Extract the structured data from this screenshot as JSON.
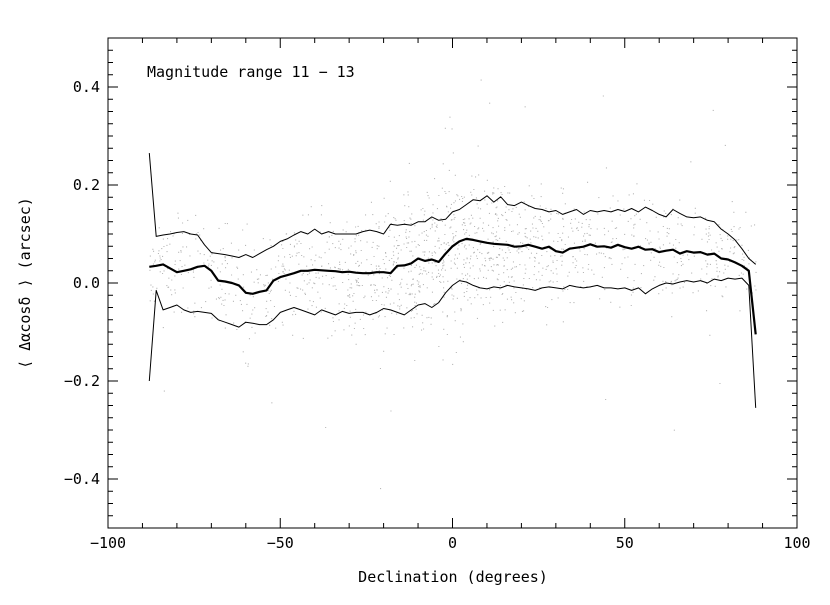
{
  "chart_data": {
    "type": "scatter",
    "title": "",
    "annotation": "Magnitude range 11 − 13",
    "xlabel": "Declination (degrees)",
    "ylabel": "⟨ Δαcosδ ⟩ (arcsec)",
    "xlim": [
      -100,
      100
    ],
    "ylim": [
      -0.5,
      0.5
    ],
    "x_ticks": [
      -100,
      -50,
      0,
      50,
      100
    ],
    "x_tick_labels": [
      "−100",
      "−50",
      "0",
      "50",
      "100"
    ],
    "y_ticks": [
      -0.4,
      -0.2,
      0.0,
      0.2,
      0.4
    ],
    "y_tick_labels": [
      "−0.4",
      "−0.2",
      "0.0",
      "0.2",
      "0.4"
    ],
    "grid": false,
    "point_color": "#b8b8b8",
    "line_color": "#000000",
    "scatter_envelope": {
      "declination": [
        -88,
        -85,
        -80,
        -75,
        -70,
        -65,
        -60,
        -55,
        -50,
        -45,
        -40,
        -35,
        -30,
        -25,
        -20,
        -15,
        -10,
        -5,
        0,
        5,
        10,
        15,
        20,
        25,
        30,
        35,
        40,
        45,
        50,
        55,
        60,
        65,
        70,
        75,
        80,
        85,
        88
      ],
      "center": [
        0.03,
        0.035,
        0.025,
        0.03,
        0.005,
        -0.005,
        -0.02,
        -0.01,
        0.01,
        0.02,
        0.025,
        0.025,
        0.022,
        0.02,
        0.03,
        0.04,
        0.045,
        0.05,
        0.07,
        0.085,
        0.08,
        0.075,
        0.07,
        0.075,
        0.065,
        0.07,
        0.075,
        0.07,
        0.075,
        0.068,
        0.065,
        0.06,
        0.062,
        0.06,
        0.055,
        0.045,
        0.02
      ],
      "spread": [
        0.09,
        0.1,
        0.11,
        0.11,
        0.12,
        0.12,
        0.12,
        0.12,
        0.12,
        0.12,
        0.11,
        0.11,
        0.11,
        0.11,
        0.12,
        0.12,
        0.13,
        0.14,
        0.15,
        0.13,
        0.12,
        0.12,
        0.12,
        0.11,
        0.11,
        0.11,
        0.11,
        0.11,
        0.11,
        0.11,
        0.1,
        0.1,
        0.1,
        0.09,
        0.08,
        0.07,
        0.06
      ]
    },
    "series": [
      {
        "name": "",
        "style": "thick",
        "x": [
          -88,
          -86,
          -84,
          -82,
          -80,
          -78,
          -76,
          -74,
          -72,
          -70,
          -68,
          -66,
          -64,
          -62,
          -60,
          -58,
          -56,
          -54,
          -52,
          -50,
          -48,
          -46,
          -44,
          -42,
          -40,
          -38,
          -36,
          -34,
          -32,
          -30,
          -28,
          -26,
          -24,
          -22,
          -20,
          -18,
          -16,
          -14,
          -12,
          -10,
          -8,
          -6,
          -4,
          -2,
          0,
          2,
          4,
          6,
          8,
          10,
          12,
          14,
          16,
          18,
          20,
          22,
          24,
          26,
          28,
          30,
          32,
          34,
          36,
          38,
          40,
          42,
          44,
          46,
          48,
          50,
          52,
          54,
          56,
          58,
          60,
          62,
          64,
          66,
          68,
          70,
          72,
          74,
          76,
          78,
          80,
          82,
          84,
          86,
          88
        ],
        "y": [
          0.033,
          0.035,
          0.038,
          0.03,
          0.022,
          0.025,
          0.028,
          0.033,
          0.035,
          0.025,
          0.005,
          0.003,
          0.0,
          -0.005,
          -0.02,
          -0.022,
          -0.018,
          -0.015,
          0.005,
          0.012,
          0.016,
          0.02,
          0.025,
          0.025,
          0.027,
          0.026,
          0.025,
          0.024,
          0.022,
          0.023,
          0.021,
          0.02,
          0.02,
          0.022,
          0.022,
          0.02,
          0.035,
          0.036,
          0.04,
          0.05,
          0.045,
          0.048,
          0.043,
          0.06,
          0.075,
          0.085,
          0.09,
          0.088,
          0.085,
          0.082,
          0.08,
          0.079,
          0.078,
          0.074,
          0.075,
          0.078,
          0.074,
          0.07,
          0.074,
          0.065,
          0.062,
          0.07,
          0.072,
          0.074,
          0.079,
          0.074,
          0.075,
          0.072,
          0.078,
          0.073,
          0.07,
          0.074,
          0.068,
          0.069,
          0.063,
          0.066,
          0.068,
          0.06,
          0.065,
          0.062,
          0.063,
          0.058,
          0.06,
          0.05,
          0.048,
          0.042,
          0.035,
          0.025,
          -0.105
        ]
      },
      {
        "name": "",
        "style": "thin-upper",
        "x": [
          -88,
          -86,
          -84,
          -82,
          -80,
          -78,
          -76,
          -74,
          -72,
          -70,
          -68,
          -66,
          -64,
          -62,
          -60,
          -58,
          -56,
          -54,
          -52,
          -50,
          -48,
          -46,
          -44,
          -42,
          -40,
          -38,
          -36,
          -34,
          -32,
          -30,
          -28,
          -26,
          -24,
          -22,
          -20,
          -18,
          -16,
          -14,
          -12,
          -10,
          -8,
          -6,
          -4,
          -2,
          0,
          2,
          4,
          6,
          8,
          10,
          12,
          14,
          16,
          18,
          20,
          22,
          24,
          26,
          28,
          30,
          32,
          34,
          36,
          38,
          40,
          42,
          44,
          46,
          48,
          50,
          52,
          54,
          56,
          58,
          60,
          62,
          64,
          66,
          68,
          70,
          72,
          74,
          76,
          78,
          80,
          82,
          84,
          86,
          88
        ],
        "y": [
          0.265,
          0.095,
          0.098,
          0.1,
          0.103,
          0.105,
          0.1,
          0.098,
          0.078,
          0.062,
          0.06,
          0.058,
          0.055,
          0.052,
          0.058,
          0.052,
          0.06,
          0.068,
          0.075,
          0.085,
          0.09,
          0.098,
          0.105,
          0.1,
          0.11,
          0.1,
          0.105,
          0.1,
          0.1,
          0.1,
          0.1,
          0.105,
          0.108,
          0.105,
          0.1,
          0.12,
          0.118,
          0.12,
          0.118,
          0.125,
          0.125,
          0.135,
          0.128,
          0.13,
          0.145,
          0.15,
          0.16,
          0.17,
          0.168,
          0.178,
          0.165,
          0.176,
          0.16,
          0.158,
          0.165,
          0.158,
          0.152,
          0.15,
          0.145,
          0.148,
          0.14,
          0.145,
          0.15,
          0.14,
          0.148,
          0.145,
          0.148,
          0.145,
          0.15,
          0.146,
          0.152,
          0.145,
          0.155,
          0.148,
          0.14,
          0.135,
          0.15,
          0.142,
          0.135,
          0.133,
          0.135,
          0.128,
          0.125,
          0.11,
          0.1,
          0.088,
          0.07,
          0.05,
          0.038
        ]
      },
      {
        "name": "",
        "style": "thin-lower",
        "x": [
          -88,
          -86,
          -84,
          -82,
          -80,
          -78,
          -76,
          -74,
          -72,
          -70,
          -68,
          -66,
          -64,
          -62,
          -60,
          -58,
          -56,
          -54,
          -52,
          -50,
          -48,
          -46,
          -44,
          -42,
          -40,
          -38,
          -36,
          -34,
          -32,
          -30,
          -28,
          -26,
          -24,
          -22,
          -20,
          -18,
          -16,
          -14,
          -12,
          -10,
          -8,
          -6,
          -4,
          -2,
          0,
          2,
          4,
          6,
          8,
          10,
          12,
          14,
          16,
          18,
          20,
          22,
          24,
          26,
          28,
          30,
          32,
          34,
          36,
          38,
          40,
          42,
          44,
          46,
          48,
          50,
          52,
          54,
          56,
          58,
          60,
          62,
          64,
          66,
          68,
          70,
          72,
          74,
          76,
          78,
          80,
          82,
          84,
          86,
          88
        ],
        "y": [
          -0.2,
          -0.015,
          -0.055,
          -0.05,
          -0.045,
          -0.055,
          -0.06,
          -0.058,
          -0.06,
          -0.062,
          -0.075,
          -0.08,
          -0.085,
          -0.09,
          -0.08,
          -0.082,
          -0.085,
          -0.085,
          -0.075,
          -0.06,
          -0.055,
          -0.05,
          -0.055,
          -0.06,
          -0.065,
          -0.055,
          -0.06,
          -0.065,
          -0.058,
          -0.062,
          -0.06,
          -0.06,
          -0.065,
          -0.06,
          -0.052,
          -0.055,
          -0.06,
          -0.065,
          -0.055,
          -0.045,
          -0.042,
          -0.05,
          -0.04,
          -0.02,
          -0.005,
          0.005,
          0.002,
          -0.005,
          -0.01,
          -0.012,
          -0.008,
          -0.01,
          -0.005,
          -0.008,
          -0.01,
          -0.012,
          -0.015,
          -0.01,
          -0.008,
          -0.01,
          -0.012,
          -0.005,
          -0.008,
          -0.01,
          -0.008,
          -0.005,
          -0.01,
          -0.01,
          -0.012,
          -0.01,
          -0.015,
          -0.01,
          -0.022,
          -0.012,
          -0.005,
          0.0,
          -0.002,
          0.002,
          0.005,
          0.002,
          0.005,
          0.0,
          0.008,
          0.005,
          0.01,
          0.008,
          0.01,
          -0.005,
          -0.255
        ]
      }
    ]
  }
}
